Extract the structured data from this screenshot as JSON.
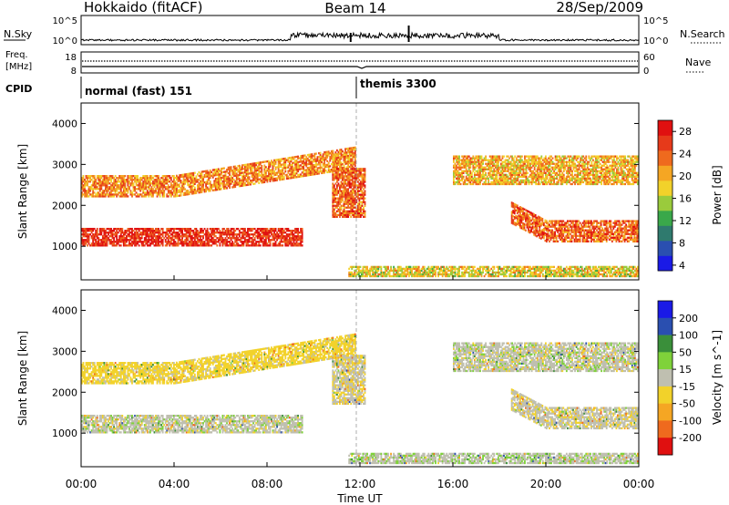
{
  "header": {
    "station": "Hokkaido (fitACF)",
    "beam": "Beam 14",
    "date": "28/Sep/2009"
  },
  "noise_panel": {
    "left_label": "N.Sky",
    "right_label": "N.Search",
    "left_ticks": [
      "10^5",
      "10^0"
    ],
    "right_ticks": [
      "10^5",
      "10^0"
    ]
  },
  "freq_panel": {
    "left_label_1": "Freq.",
    "left_label_2": "[MHz]",
    "right_label": "Nave",
    "left_ticks": [
      "18",
      "8"
    ],
    "right_ticks": [
      "60",
      "0"
    ]
  },
  "cpid_panel": {
    "label": "CPID",
    "modes": [
      {
        "name": "normal (fast) 151",
        "start_hour": 0
      },
      {
        "name": "themis 3300",
        "start_hour": 12
      }
    ]
  },
  "axes": {
    "xlabel": "Time UT",
    "x_ticks": [
      "00:00",
      "04:00",
      "08:00",
      "12:00",
      "16:00",
      "20:00",
      "00:00"
    ],
    "ylabel": "Slant Range [km]",
    "y_ticks": [
      "1000",
      "2000",
      "3000",
      "4000"
    ]
  },
  "colorbars": {
    "power": {
      "label": "Power [dB]",
      "ticks": [
        "4",
        "8",
        "12",
        "16",
        "20",
        "24",
        "28"
      ],
      "colors": [
        "#1a1ae6",
        "#2a4fb0",
        "#2f7a6e",
        "#3aa84a",
        "#9acb3c",
        "#f2d22a",
        "#f5a623",
        "#ef6a1e",
        "#e63a1a",
        "#e01010"
      ]
    },
    "velocity": {
      "label": "Velocity [m s^-1]",
      "ticks": [
        "200",
        "100",
        "50",
        "15",
        "-15",
        "-50",
        "-100",
        "-200"
      ],
      "colors": [
        "#1a1ae6",
        "#2a4fb0",
        "#3a8f3a",
        "#7fd23a",
        "#bfbfb0",
        "#f2d22a",
        "#f5a623",
        "#ef6a1e",
        "#e01010"
      ]
    }
  },
  "chart_data": {
    "type": "heatmap",
    "x_unit": "hours UT",
    "xlim": [
      0,
      24
    ],
    "ylim": [
      180,
      4500
    ],
    "power_range_db": [
      3,
      30
    ],
    "velocity_range": [
      -200,
      200
    ],
    "echo_regions": [
      {
        "name": "near-range band",
        "t0": 0,
        "t1": 9.5,
        "r0": 1000,
        "r1": 1450,
        "power": 27,
        "velocity": 0
      },
      {
        "name": "rising F-region echo",
        "t0": 0,
        "t1": 11.8,
        "r0": 2200,
        "r1": 2700,
        "power": 22,
        "velocity": -30
      },
      {
        "name": "post-noon echoes",
        "t0": 10.8,
        "t1": 12.2,
        "r0": 1700,
        "r1": 2900,
        "power": 24,
        "velocity": -10
      },
      {
        "name": "evening band",
        "t0": 16,
        "t1": 24,
        "r0": 2500,
        "r1": 3200,
        "power": 20,
        "velocity": 0
      },
      {
        "name": "evening low band",
        "t0": 18.5,
        "t1": 24,
        "r0": 1100,
        "r1": 1600,
        "power": 24,
        "velocity": -5
      },
      {
        "name": "ground scatter floor",
        "t0": 11.5,
        "t1": 24,
        "r0": 250,
        "r1": 500,
        "power": 18,
        "velocity": 5
      }
    ]
  }
}
